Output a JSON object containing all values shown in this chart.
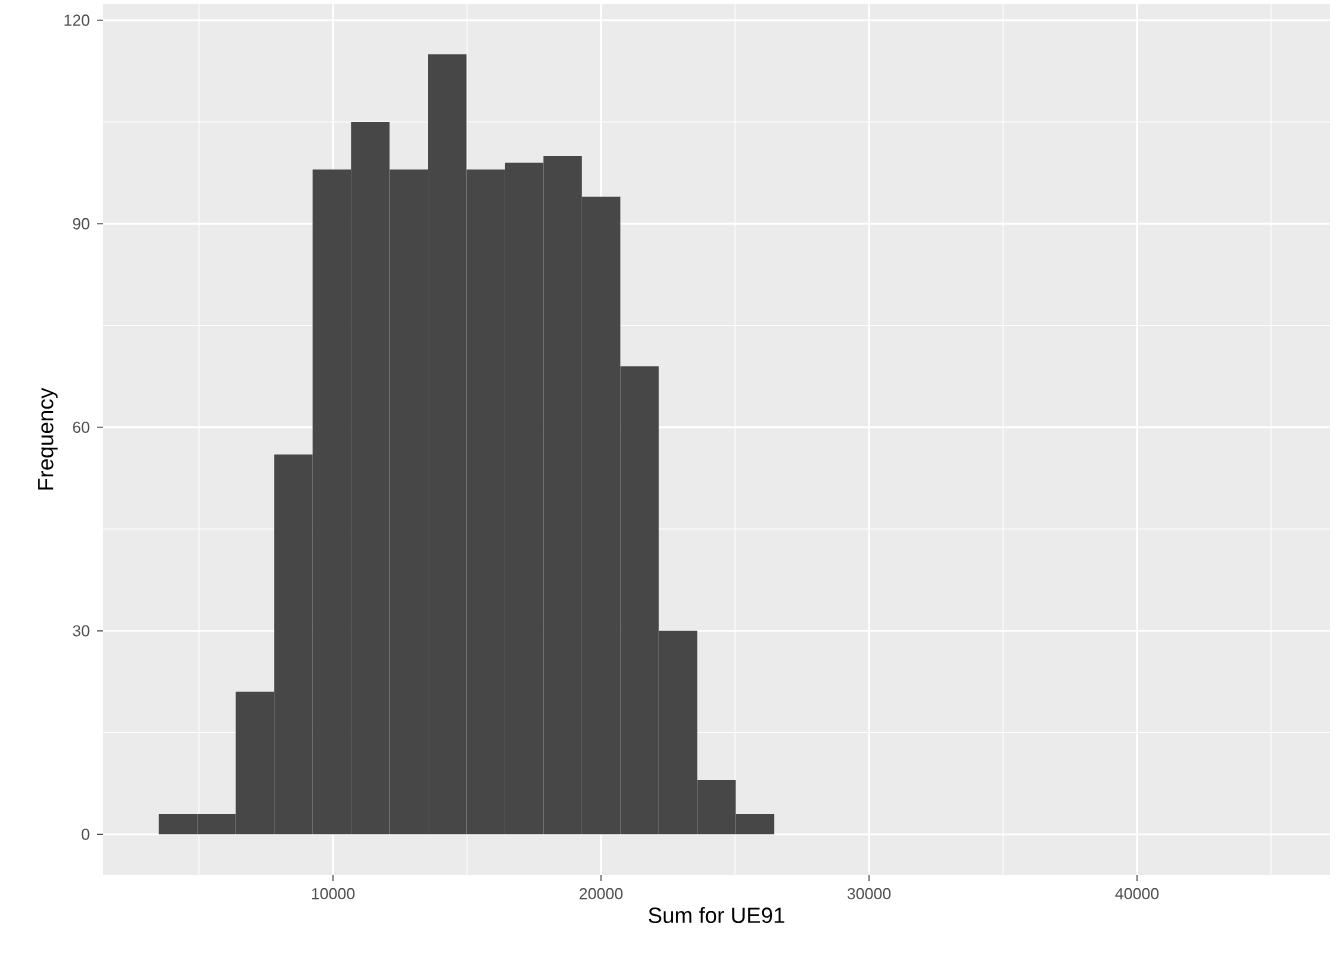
{
  "chart_data": {
    "type": "histogram",
    "xlabel": "Sum for UE91",
    "ylabel": "Frequency",
    "bins": [
      3500,
      4935,
      6370,
      7805,
      9240,
      10675,
      12110,
      13545,
      14980,
      16415,
      17850,
      19285,
      20720,
      22155,
      23590,
      25025,
      26460
    ],
    "values": [
      3,
      3,
      21,
      56,
      98,
      105,
      98,
      115,
      98,
      99,
      100,
      94,
      69,
      30,
      8,
      3
    ],
    "color": "#474747",
    "xlim": [
      1418,
      47200
    ],
    "ylim": [
      -6,
      122.4
    ],
    "xticks": [
      10000,
      20000,
      30000,
      40000
    ],
    "yticks": [
      0,
      30,
      60,
      90,
      120
    ],
    "grid": true
  }
}
